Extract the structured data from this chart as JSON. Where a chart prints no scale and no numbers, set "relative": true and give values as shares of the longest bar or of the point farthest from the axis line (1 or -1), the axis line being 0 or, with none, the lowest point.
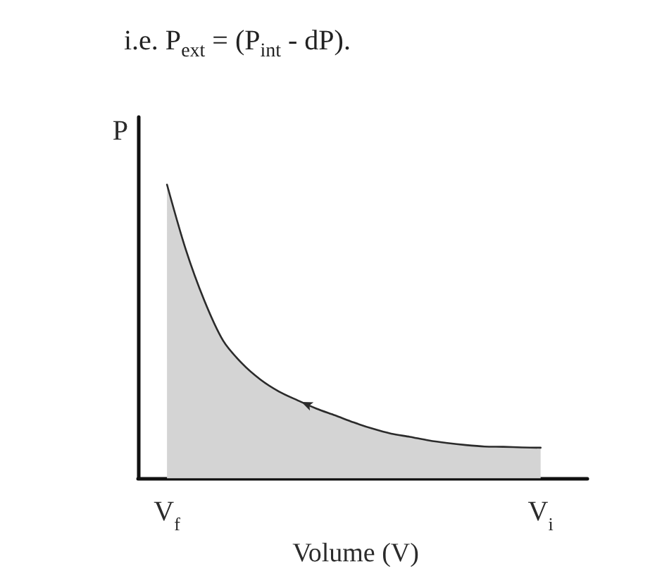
{
  "chart_data": {
    "type": "area",
    "title": "i.e. P$_{ext}$ = (P$_{int}$ - dP).",
    "xlabel": "Volume (V)",
    "ylabel": "P",
    "relative": true,
    "categories": [
      "V$_{f}$",
      null,
      null,
      null,
      null,
      null,
      null,
      null,
      null,
      null,
      null,
      null,
      null,
      null,
      null,
      null,
      null,
      null,
      null,
      null,
      "V$_{i}$"
    ],
    "series": [
      {
        "color": "#d4d4d4",
        "values": [
          1,
          0.78,
          0.605,
          0.469,
          0.392,
          0.336,
          0.295,
          0.265,
          0.237,
          0.214,
          0.19,
          0.169,
          0.152,
          0.141,
          0.129,
          0.12,
          0.113,
          0.108,
          0.107,
          0.105,
          0.104
        ]
      }
    ]
  }
}
